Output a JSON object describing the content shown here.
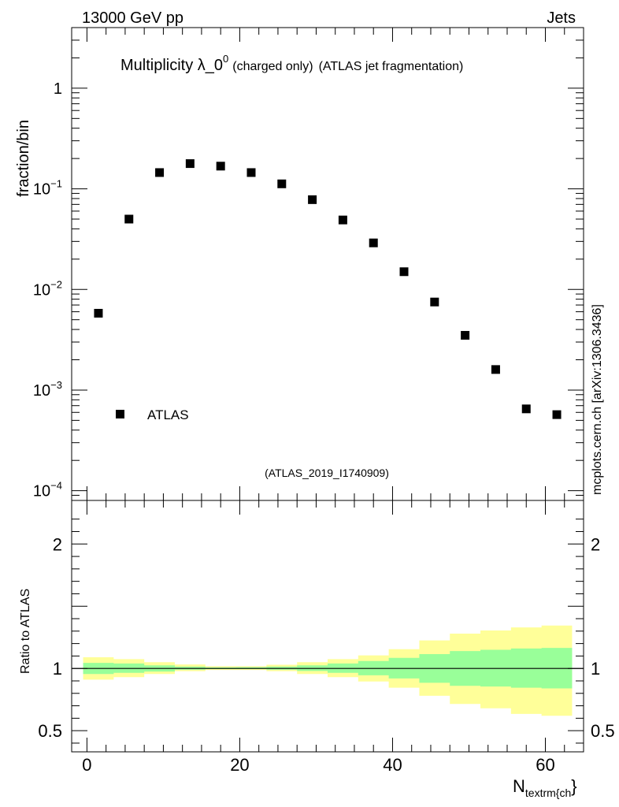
{
  "header": {
    "left_label": "13000 GeV pp",
    "right_label": "Jets"
  },
  "side_label": "mcplots.cern.ch [arXiv:1306.3436]",
  "watermark": "(ATLAS_2019_I1740909)",
  "colors": {
    "marker": "#000000",
    "band_inner": "#99ff99",
    "band_outer": "#ffff99",
    "watermark": "#999999"
  },
  "chart_data": [
    {
      "type": "scatter",
      "title": "Multiplicity λ_0⁰ (charged only) (ATLAS jet fragmentation)",
      "title_parts": {
        "main": "Multiplicity λ_0",
        "sup": "0",
        "small1": "(charged only)",
        "small2": "(ATLAS jet fragmentation)"
      },
      "xlabel": "N_textrm{ch}",
      "xlabel_parts": {
        "main": "N",
        "sub": "textrm{ch",
        "suffix": "}"
      },
      "ylabel": "fraction/bin",
      "yscale": "log",
      "xlim": [
        -2,
        65
      ],
      "ylim": [
        8e-05,
        4
      ],
      "y_tick_labels": [
        {
          "value": 1,
          "base": "1",
          "exp": ""
        },
        {
          "value": 0.1,
          "base": "10",
          "exp": "−1"
        },
        {
          "value": 0.01,
          "base": "10",
          "exp": "−2"
        },
        {
          "value": 0.001,
          "base": "10",
          "exp": "−3"
        },
        {
          "value": 0.0001,
          "base": "10",
          "exp": "−4"
        }
      ],
      "legend": {
        "label": "ATLAS",
        "position": "bottom-left"
      },
      "series": [
        {
          "name": "ATLAS",
          "x": [
            1.5,
            5.5,
            9.5,
            13.5,
            17.5,
            21.5,
            25.5,
            29.5,
            33.5,
            37.5,
            41.5,
            45.5,
            49.5,
            53.5,
            57.5,
            61.5
          ],
          "y": [
            0.0058,
            0.05,
            0.145,
            0.178,
            0.168,
            0.145,
            0.112,
            0.078,
            0.049,
            0.029,
            0.015,
            0.0075,
            0.0035,
            0.0016,
            0.00065,
            0.00057
          ]
        }
      ]
    },
    {
      "type": "area",
      "ylabel": "Ratio to ATLAS",
      "xlim": [
        -2,
        65
      ],
      "ylim": [
        0.33,
        2.35
      ],
      "x_ticks": [
        0,
        20,
        40,
        60
      ],
      "x_tick_labels": [
        "0",
        "20",
        "40",
        "60"
      ],
      "y_ticks": [
        0.5,
        1,
        2
      ],
      "y_tick_labels": [
        "0.5",
        "1",
        "2"
      ],
      "reference_line": 1,
      "bins": [
        [
          -0.5,
          3.5
        ],
        [
          3.5,
          7.5
        ],
        [
          7.5,
          11.5
        ],
        [
          11.5,
          15.5
        ],
        [
          15.5,
          19.5
        ],
        [
          19.5,
          23.5
        ],
        [
          23.5,
          27.5
        ],
        [
          27.5,
          31.5
        ],
        [
          31.5,
          35.5
        ],
        [
          35.5,
          39.5
        ],
        [
          39.5,
          43.5
        ],
        [
          43.5,
          47.5
        ],
        [
          47.5,
          51.5
        ],
        [
          51.5,
          55.5
        ],
        [
          55.5,
          59.5
        ],
        [
          59.5,
          63.5
        ]
      ],
      "outer_band": {
        "low": [
          0.91,
          0.93,
          0.955,
          0.978,
          0.988,
          0.988,
          0.978,
          0.955,
          0.93,
          0.895,
          0.845,
          0.78,
          0.715,
          0.68,
          0.635,
          0.62
        ],
        "high": [
          1.09,
          1.075,
          1.05,
          1.032,
          1.018,
          1.018,
          1.03,
          1.05,
          1.075,
          1.105,
          1.155,
          1.225,
          1.28,
          1.305,
          1.33,
          1.345
        ]
      },
      "inner_band": {
        "low": [
          0.955,
          0.965,
          0.975,
          0.99,
          0.995,
          0.995,
          0.99,
          0.98,
          0.965,
          0.945,
          0.92,
          0.885,
          0.86,
          0.855,
          0.845,
          0.84
        ],
        "high": [
          1.045,
          1.04,
          1.025,
          1.015,
          1.008,
          1.01,
          1.015,
          1.025,
          1.04,
          1.06,
          1.085,
          1.115,
          1.14,
          1.15,
          1.16,
          1.165
        ]
      }
    }
  ]
}
